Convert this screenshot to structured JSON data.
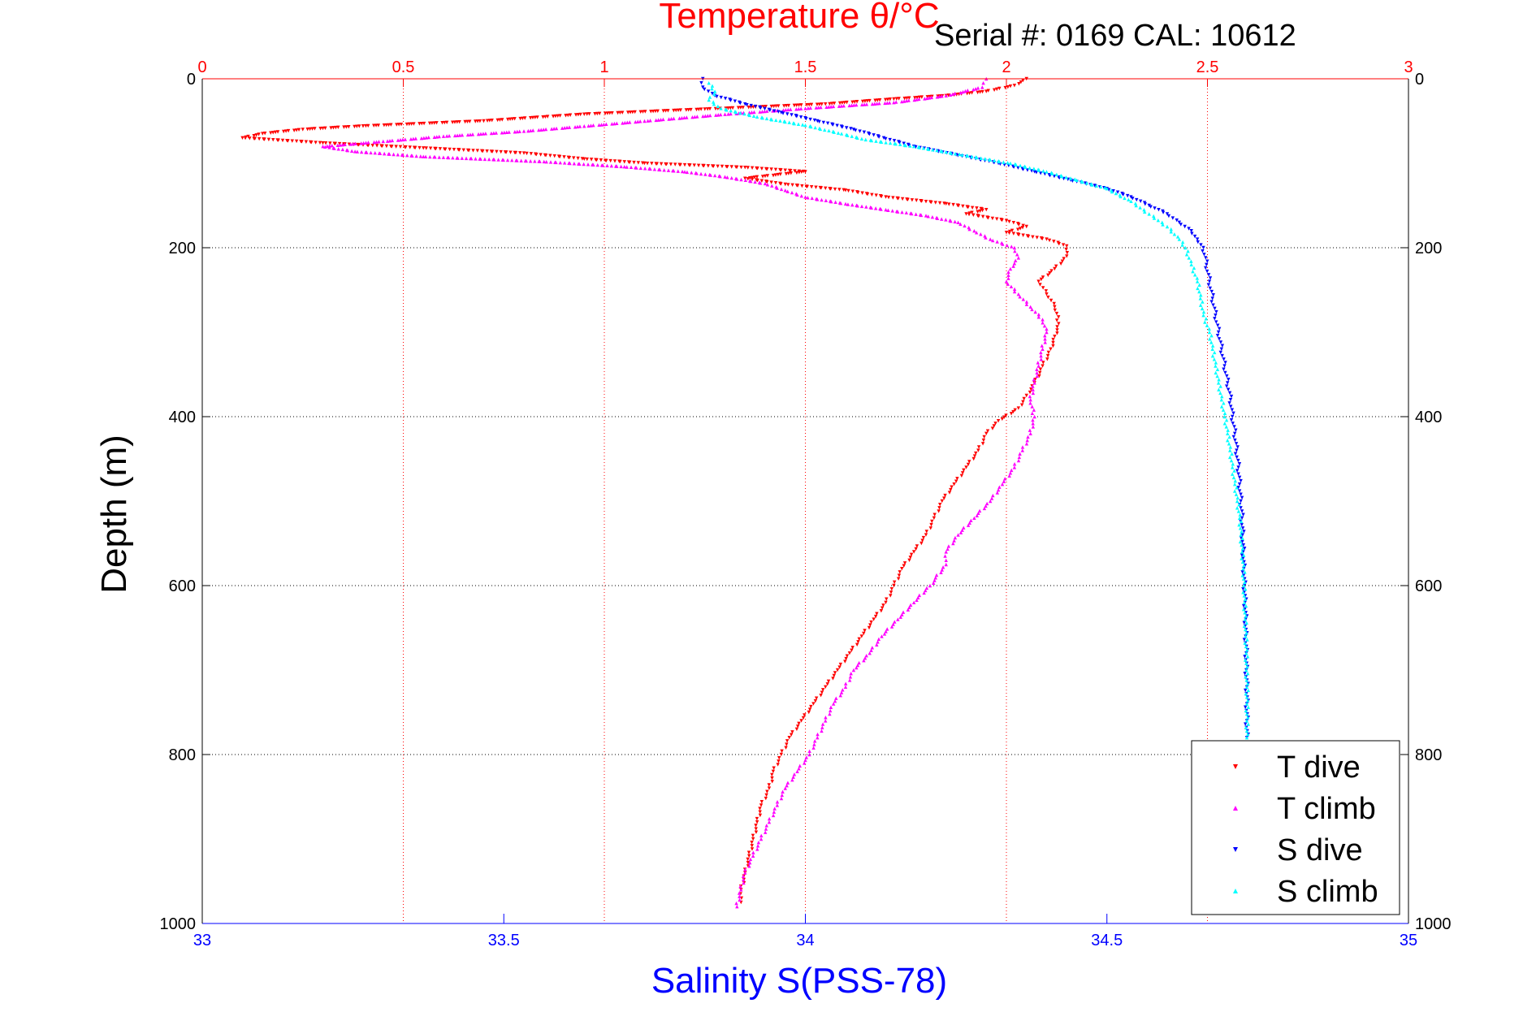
{
  "chart_data": {
    "type": "scatter",
    "title_top": "Temperature θ/°C",
    "subtitle": "Serial #: 0169 CAL: 10612",
    "xlabel_bottom": "Salinity S(PSS-78)",
    "ylabel": "Depth (m)",
    "top_axis": {
      "range": [
        0,
        3
      ],
      "ticks": [
        "0",
        "0.5",
        "1",
        "1.5",
        "2",
        "2.5",
        "3"
      ],
      "color": "#ff0000"
    },
    "bottom_axis": {
      "range": [
        33,
        35
      ],
      "ticks": [
        "33",
        "33.5",
        "34",
        "34.5",
        "35"
      ],
      "color": "#0000ff"
    },
    "y_axis": {
      "range": [
        0,
        1000
      ],
      "reversed": true,
      "ticks": [
        "0",
        "200",
        "400",
        "600",
        "800",
        "1000"
      ]
    },
    "grid": true,
    "legend_position": "bottom-right",
    "series": [
      {
        "name": "T dive",
        "axis": "temperature",
        "color": "#ff0000",
        "marker": "triangle-down",
        "points": [
          [
            2.05,
            0
          ],
          [
            2.02,
            8
          ],
          [
            1.95,
            15
          ],
          [
            1.85,
            20
          ],
          [
            1.72,
            24
          ],
          [
            1.55,
            30
          ],
          [
            1.25,
            36
          ],
          [
            0.95,
            42
          ],
          [
            0.7,
            50
          ],
          [
            0.4,
            56
          ],
          [
            0.25,
            60
          ],
          [
            0.15,
            65
          ],
          [
            0.1,
            70
          ],
          [
            0.3,
            76
          ],
          [
            0.55,
            82
          ],
          [
            0.8,
            88
          ],
          [
            0.95,
            95
          ],
          [
            1.1,
            100
          ],
          [
            1.35,
            105
          ],
          [
            1.5,
            110
          ],
          [
            1.35,
            118
          ],
          [
            1.45,
            125
          ],
          [
            1.6,
            132
          ],
          [
            1.7,
            140
          ],
          [
            1.85,
            148
          ],
          [
            1.95,
            155
          ],
          [
            1.9,
            160
          ],
          [
            2.0,
            168
          ],
          [
            2.05,
            175
          ],
          [
            2.0,
            182
          ],
          [
            2.1,
            190
          ],
          [
            2.15,
            198
          ],
          [
            2.15,
            210
          ],
          [
            2.12,
            225
          ],
          [
            2.08,
            240
          ],
          [
            2.1,
            255
          ],
          [
            2.12,
            270
          ],
          [
            2.13,
            290
          ],
          [
            2.12,
            305
          ],
          [
            2.11,
            320
          ],
          [
            2.09,
            340
          ],
          [
            2.07,
            360
          ],
          [
            2.05,
            375
          ],
          [
            2.03,
            390
          ],
          [
            1.98,
            405
          ],
          [
            1.95,
            420
          ],
          [
            1.93,
            440
          ],
          [
            1.9,
            460
          ],
          [
            1.87,
            480
          ],
          [
            1.84,
            500
          ],
          [
            1.82,
            520
          ],
          [
            1.8,
            540
          ],
          [
            1.77,
            560
          ],
          [
            1.74,
            580
          ],
          [
            1.72,
            600
          ],
          [
            1.7,
            620
          ],
          [
            1.67,
            640
          ],
          [
            1.64,
            660
          ],
          [
            1.61,
            680
          ],
          [
            1.58,
            700
          ],
          [
            1.55,
            720
          ],
          [
            1.52,
            740
          ],
          [
            1.49,
            760
          ],
          [
            1.46,
            780
          ],
          [
            1.44,
            800
          ],
          [
            1.42,
            820
          ],
          [
            1.41,
            840
          ],
          [
            1.39,
            860
          ],
          [
            1.38,
            880
          ],
          [
            1.37,
            900
          ],
          [
            1.36,
            920
          ],
          [
            1.35,
            940
          ],
          [
            1.34,
            960
          ],
          [
            1.34,
            975
          ]
        ]
      },
      {
        "name": "T climb",
        "axis": "temperature",
        "color": "#ff00ff",
        "marker": "triangle-up",
        "points": [
          [
            1.95,
            0
          ],
          [
            1.94,
            10
          ],
          [
            1.85,
            20
          ],
          [
            1.72,
            28
          ],
          [
            1.5,
            35
          ],
          [
            1.3,
            42
          ],
          [
            1.1,
            50
          ],
          [
            0.95,
            56
          ],
          [
            0.8,
            62
          ],
          [
            0.6,
            68
          ],
          [
            0.45,
            74
          ],
          [
            0.3,
            80
          ],
          [
            0.38,
            86
          ],
          [
            0.55,
            92
          ],
          [
            0.85,
            98
          ],
          [
            1.05,
            104
          ],
          [
            1.2,
            110
          ],
          [
            1.3,
            116
          ],
          [
            1.4,
            124
          ],
          [
            1.45,
            132
          ],
          [
            1.5,
            140
          ],
          [
            1.6,
            148
          ],
          [
            1.7,
            155
          ],
          [
            1.8,
            162
          ],
          [
            1.88,
            170
          ],
          [
            1.92,
            180
          ],
          [
            1.96,
            190
          ],
          [
            2.02,
            200
          ],
          [
            2.03,
            212
          ],
          [
            2.01,
            225
          ],
          [
            2.0,
            240
          ],
          [
            2.03,
            255
          ],
          [
            2.06,
            270
          ],
          [
            2.09,
            285
          ],
          [
            2.1,
            300
          ],
          [
            2.09,
            320
          ],
          [
            2.08,
            340
          ],
          [
            2.07,
            360
          ],
          [
            2.06,
            380
          ],
          [
            2.07,
            400
          ],
          [
            2.06,
            420
          ],
          [
            2.04,
            440
          ],
          [
            2.02,
            460
          ],
          [
            1.99,
            480
          ],
          [
            1.96,
            500
          ],
          [
            1.92,
            520
          ],
          [
            1.88,
            540
          ],
          [
            1.85,
            560
          ],
          [
            1.85,
            575
          ],
          [
            1.81,
            600
          ],
          [
            1.77,
            620
          ],
          [
            1.73,
            640
          ],
          [
            1.69,
            660
          ],
          [
            1.66,
            680
          ],
          [
            1.62,
            700
          ],
          [
            1.6,
            720
          ],
          [
            1.57,
            740
          ],
          [
            1.55,
            760
          ],
          [
            1.53,
            780
          ],
          [
            1.51,
            800
          ],
          [
            1.48,
            820
          ],
          [
            1.45,
            840
          ],
          [
            1.43,
            860
          ],
          [
            1.41,
            880
          ],
          [
            1.39,
            900
          ],
          [
            1.37,
            920
          ],
          [
            1.35,
            940
          ],
          [
            1.34,
            960
          ],
          [
            1.33,
            980
          ]
        ]
      },
      {
        "name": "S dive",
        "axis": "salinity",
        "color": "#0000ff",
        "marker": "triangle-down",
        "points": [
          [
            33.83,
            0
          ],
          [
            33.83,
            10
          ],
          [
            33.85,
            20
          ],
          [
            33.9,
            30
          ],
          [
            33.96,
            40
          ],
          [
            34.02,
            50
          ],
          [
            34.08,
            60
          ],
          [
            34.13,
            70
          ],
          [
            34.18,
            80
          ],
          [
            34.25,
            90
          ],
          [
            34.32,
            100
          ],
          [
            34.38,
            110
          ],
          [
            34.44,
            120
          ],
          [
            34.5,
            130
          ],
          [
            34.54,
            140
          ],
          [
            34.57,
            150
          ],
          [
            34.6,
            160
          ],
          [
            34.62,
            170
          ],
          [
            34.64,
            180
          ],
          [
            34.65,
            190
          ],
          [
            34.66,
            200
          ],
          [
            34.665,
            220
          ],
          [
            34.67,
            240
          ],
          [
            34.675,
            260
          ],
          [
            34.68,
            280
          ],
          [
            34.685,
            300
          ],
          [
            34.69,
            320
          ],
          [
            34.695,
            340
          ],
          [
            34.7,
            360
          ],
          [
            34.705,
            380
          ],
          [
            34.708,
            400
          ],
          [
            34.712,
            420
          ],
          [
            34.715,
            440
          ],
          [
            34.718,
            460
          ],
          [
            34.72,
            480
          ],
          [
            34.722,
            500
          ],
          [
            34.724,
            520
          ],
          [
            34.725,
            540
          ],
          [
            34.726,
            560
          ],
          [
            34.727,
            580
          ],
          [
            34.728,
            600
          ],
          [
            34.729,
            620
          ],
          [
            34.73,
            640
          ],
          [
            34.73,
            660
          ],
          [
            34.731,
            680
          ],
          [
            34.731,
            700
          ],
          [
            34.732,
            720
          ],
          [
            34.732,
            740
          ],
          [
            34.732,
            760
          ],
          [
            34.732,
            780
          ]
        ]
      },
      {
        "name": "S climb",
        "axis": "salinity",
        "color": "#00ffff",
        "marker": "triangle-up",
        "points": [
          [
            33.84,
            5
          ],
          [
            33.85,
            15
          ],
          [
            33.84,
            25
          ],
          [
            33.86,
            35
          ],
          [
            33.92,
            45
          ],
          [
            34.0,
            55
          ],
          [
            34.06,
            65
          ],
          [
            34.1,
            72
          ],
          [
            34.18,
            80
          ],
          [
            34.26,
            90
          ],
          [
            34.34,
            100
          ],
          [
            34.4,
            110
          ],
          [
            34.45,
            120
          ],
          [
            34.5,
            130
          ],
          [
            34.54,
            145
          ],
          [
            34.57,
            160
          ],
          [
            34.6,
            175
          ],
          [
            34.62,
            190
          ],
          [
            34.63,
            200
          ],
          [
            34.64,
            220
          ],
          [
            34.65,
            240
          ],
          [
            34.655,
            260
          ],
          [
            34.66,
            280
          ],
          [
            34.67,
            300
          ],
          [
            34.675,
            320
          ],
          [
            34.68,
            340
          ],
          [
            34.685,
            360
          ],
          [
            34.69,
            380
          ],
          [
            34.695,
            400
          ],
          [
            34.7,
            420
          ],
          [
            34.704,
            440
          ],
          [
            34.708,
            460
          ],
          [
            34.712,
            480
          ],
          [
            34.716,
            500
          ],
          [
            34.72,
            520
          ],
          [
            34.722,
            540
          ],
          [
            34.724,
            560
          ],
          [
            34.726,
            580
          ],
          [
            34.727,
            600
          ],
          [
            34.728,
            620
          ],
          [
            34.729,
            640
          ],
          [
            34.73,
            660
          ],
          [
            34.731,
            680
          ],
          [
            34.731,
            700
          ],
          [
            34.732,
            720
          ],
          [
            34.732,
            740
          ],
          [
            34.732,
            760
          ],
          [
            34.732,
            780
          ]
        ]
      }
    ]
  }
}
